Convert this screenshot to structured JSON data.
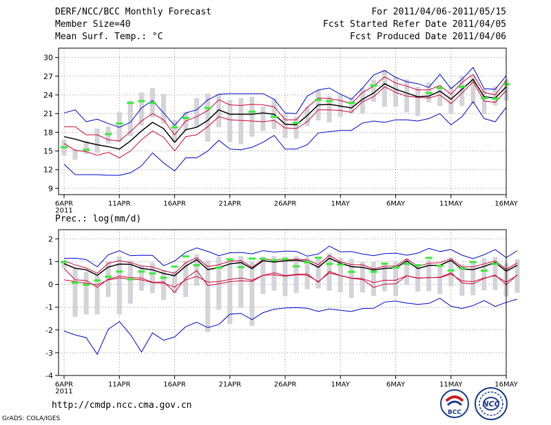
{
  "header": {
    "title": "DERF/NCC/BCC Monthly Forecast",
    "member_size": "Member Size=40",
    "variable": "Mean Surf. Temp.: °C",
    "period": "For 2011/04/06-2011/05/15",
    "started": "Fcst Started Refer Date 2011/04/05",
    "produced": "Fcst Produced Date 2011/04/06"
  },
  "footer": {
    "url": "http://cmdp.ncc.cma.gov.cn",
    "grads": "GrADS: COLA/IGES",
    "logo1_text": "BCC",
    "logo2_text": "NCC"
  },
  "colors": {
    "mean": "#000000",
    "spread": "#cc0033",
    "envelope": "#0000cc",
    "bar": "#d4d4d8",
    "obs": "#33ee33"
  },
  "chart_data": [
    {
      "type": "line",
      "title": "Mean Surf. Temp.: °C",
      "xlabel_year": "2011",
      "x_ticks": [
        {
          "day": 0,
          "label": "6APR"
        },
        {
          "day": 5,
          "label": "11APR"
        },
        {
          "day": 10,
          "label": "16APR"
        },
        {
          "day": 15,
          "label": "21APR"
        },
        {
          "day": 20,
          "label": "26APR"
        },
        {
          "day": 25,
          "label": "1MAY"
        },
        {
          "day": 30,
          "label": "6MAY"
        },
        {
          "day": 35,
          "label": "11MAY"
        },
        {
          "day": 40,
          "label": "16MAY"
        }
      ],
      "xlim": [
        -0.5,
        40
      ],
      "ylim": [
        8,
        31.5
      ],
      "y_ticks": [
        9,
        12,
        15,
        18,
        21,
        24,
        27,
        30
      ],
      "grid": true,
      "series": [
        {
          "name": "ensemble-mean",
          "values": [
            17.3,
            16.9,
            16.4,
            16.0,
            15.7,
            15.3,
            16.6,
            18.2,
            19.6,
            18.6,
            16.4,
            18.4,
            18.8,
            19.9,
            21.6,
            20.9,
            20.9,
            20.9,
            21.1,
            20.9,
            19.3,
            19.2,
            20.7,
            22.4,
            22.5,
            22.2,
            21.9,
            23.3,
            24.3,
            25.8,
            24.9,
            24.3,
            23.7,
            23.8,
            24.6,
            23.3,
            24.9,
            26.5,
            23.7,
            23.5,
            25.3
          ]
        },
        {
          "name": "upper-spread",
          "values": [
            18.9,
            18.9,
            17.6,
            17.6,
            16.8,
            16.6,
            18.1,
            19.8,
            21.0,
            20.0,
            17.6,
            19.8,
            20.5,
            21.5,
            23.2,
            22.4,
            22.3,
            22.5,
            22.4,
            22.1,
            20.0,
            20.0,
            22.0,
            23.5,
            23.4,
            23.1,
            22.6,
            24.4,
            25.4,
            26.9,
            25.9,
            25.4,
            24.8,
            24.8,
            25.5,
            24.1,
            26.0,
            27.3,
            24.4,
            24.0,
            26.3
          ]
        },
        {
          "name": "lower-spread",
          "values": [
            16.2,
            15.1,
            14.9,
            14.3,
            14.8,
            13.9,
            15.0,
            16.8,
            18.2,
            17.2,
            15.0,
            17.3,
            17.6,
            18.9,
            20.5,
            20.0,
            19.9,
            19.8,
            19.7,
            19.9,
            18.7,
            18.6,
            19.7,
            21.6,
            21.6,
            21.5,
            21.2,
            22.9,
            23.7,
            25.3,
            24.4,
            23.8,
            23.6,
            23.5,
            24.0,
            22.6,
            24.3,
            26.1,
            23.0,
            22.8,
            24.7
          ]
        },
        {
          "name": "max-envelope",
          "values": [
            21.1,
            21.6,
            19.7,
            20.1,
            19.4,
            18.8,
            19.6,
            21.9,
            23.1,
            21.1,
            19.1,
            21.1,
            21.6,
            23.2,
            24.1,
            24.2,
            24.2,
            24.2,
            24.2,
            23.3,
            21.1,
            21.0,
            23.8,
            24.8,
            25.1,
            24.1,
            23.3,
            25.1,
            27.2,
            27.9,
            26.8,
            26.1,
            25.8,
            25.2,
            27.3,
            25.0,
            26.5,
            28.4,
            25.0,
            24.9,
            27.1
          ]
        },
        {
          "name": "min-envelope",
          "values": [
            12.9,
            11.2,
            11.2,
            11.2,
            11.1,
            11.1,
            11.5,
            12.6,
            14.7,
            13.1,
            11.8,
            13.9,
            13.9,
            15.0,
            16.7,
            15.3,
            15.2,
            15.6,
            16.4,
            17.5,
            15.3,
            15.3,
            16.0,
            17.9,
            18.1,
            18.3,
            18.3,
            19.5,
            19.8,
            19.6,
            20.0,
            20.0,
            19.8,
            20.2,
            21.0,
            19.2,
            20.5,
            22.9,
            20.2,
            19.7,
            22.0
          ]
        }
      ],
      "bars": [
        [
          14.3,
          16.8
        ],
        [
          13.6,
          15.3
        ],
        [
          14.5,
          16.6
        ],
        [
          14.7,
          18.6
        ],
        [
          16.2,
          18.9
        ],
        [
          16.5,
          21.2
        ],
        [
          17.4,
          23.1
        ],
        [
          19.1,
          24.4
        ],
        [
          20.4,
          25.1
        ],
        [
          19.4,
          24.1
        ],
        [
          16.5,
          20.0
        ],
        [
          18.3,
          21.3
        ],
        [
          18.8,
          23.5
        ],
        [
          16.5,
          24.2
        ],
        [
          18.8,
          24.2
        ],
        [
          16.5,
          23.2
        ],
        [
          16.1,
          23.5
        ],
        [
          17.3,
          23.7
        ],
        [
          18.2,
          22.1
        ],
        [
          18.5,
          23.3
        ],
        [
          17.1,
          21.0
        ],
        [
          17.0,
          20.5
        ],
        [
          19.0,
          22.1
        ],
        [
          19.9,
          24.8
        ],
        [
          19.6,
          23.8
        ],
        [
          20.5,
          24.0
        ],
        [
          21.0,
          23.5
        ],
        [
          21.0,
          25.1
        ],
        [
          22.9,
          26.4
        ],
        [
          22.1,
          28.0
        ],
        [
          22.1,
          26.9
        ],
        [
          21.2,
          26.5
        ],
        [
          20.6,
          25.3
        ],
        [
          22.8,
          26.0
        ],
        [
          22.2,
          25.5
        ],
        [
          21.0,
          25.4
        ],
        [
          22.2,
          27.1
        ],
        [
          22.6,
          27.1
        ],
        [
          20.9,
          24.9
        ],
        [
          22.3,
          25.4
        ],
        [
          23.1,
          26.5
        ]
      ],
      "observed": [
        15.6,
        null,
        15.2,
        null,
        17.7,
        19.4,
        22.7,
        23.0,
        22.7,
        null,
        18.8,
        20.3,
        null,
        21.9,
        null,
        null,
        null,
        21.3,
        null,
        20.5,
        null,
        19.5,
        null,
        23.2,
        23.0,
        null,
        22.7,
        null,
        25.5,
        null,
        null,
        null,
        null,
        24.3,
        25.1,
        null,
        25.3,
        null,
        23.5,
        23.4,
        25.7
      ]
    },
    {
      "type": "line",
      "title": "Prec.: log(mm/d)",
      "xlabel_year": "2011",
      "x_ticks": [
        {
          "day": 0,
          "label": "6APR"
        },
        {
          "day": 5,
          "label": "11APR"
        },
        {
          "day": 10,
          "label": "16APR"
        },
        {
          "day": 15,
          "label": "21APR"
        },
        {
          "day": 20,
          "label": "26APR"
        },
        {
          "day": 25,
          "label": "1MAY"
        },
        {
          "day": 30,
          "label": "6MAY"
        },
        {
          "day": 35,
          "label": "11MAY"
        },
        {
          "day": 40,
          "label": "16MAY"
        }
      ],
      "xlim": [
        -0.5,
        40
      ],
      "ylim": [
        -4,
        2.4
      ],
      "y_ticks": [
        -4,
        -3,
        -2,
        -1,
        0,
        1,
        2
      ],
      "grid": true,
      "series": [
        {
          "name": "ensemble-mean",
          "values": [
            0.91,
            0.71,
            0.64,
            0.4,
            0.76,
            0.89,
            0.88,
            0.7,
            0.64,
            0.48,
            0.38,
            0.8,
            1.08,
            0.65,
            0.73,
            0.9,
            0.96,
            0.69,
            1.04,
            0.98,
            1.03,
            1.06,
            1.0,
            0.75,
            1.15,
            0.93,
            0.78,
            0.75,
            0.63,
            0.7,
            0.72,
            1.03,
            0.69,
            0.83,
            0.84,
            1.05,
            0.67,
            0.65,
            0.79,
            0.96,
            0.58,
            0.84
          ]
        },
        {
          "name": "upper-spread",
          "values": [
            1.04,
            0.85,
            0.72,
            0.49,
            0.92,
            1.04,
            0.96,
            0.81,
            0.76,
            0.6,
            0.49,
            0.95,
            1.17,
            0.78,
            0.86,
            1.02,
            1.05,
            0.75,
            1.09,
            1.08,
            1.08,
            1.11,
            1.08,
            0.86,
            1.27,
            0.99,
            0.87,
            0.86,
            0.68,
            0.8,
            0.8,
            1.12,
            0.79,
            0.93,
            0.95,
            1.12,
            0.77,
            0.77,
            0.9,
            1.03,
            0.66,
            0.94
          ]
        },
        {
          "name": "lower-spread",
          "values": [
            0.7,
            0.2,
            0.17,
            -0.13,
            0.23,
            0.36,
            0.3,
            0.28,
            0.09,
            0.11,
            -0.35,
            0.27,
            0.6,
            -0.05,
            0.02,
            0.12,
            0.16,
            0.13,
            0.4,
            0.51,
            0.38,
            0.44,
            0.46,
            0.09,
            0.57,
            0.38,
            0.27,
            0.21,
            -0.13,
            0.01,
            0.02,
            0.38,
            0.27,
            0.3,
            0.31,
            0.51,
            0.06,
            0.02,
            0.26,
            0.41,
            -0.02,
            0.42
          ]
        },
        {
          "name": "max-envelope",
          "values": [
            1.14,
            1.15,
            1.09,
            0.77,
            1.3,
            1.48,
            1.26,
            1.28,
            1.27,
            0.82,
            1.02,
            1.41,
            1.6,
            1.45,
            1.26,
            1.39,
            1.4,
            1.34,
            1.48,
            1.42,
            1.46,
            1.45,
            1.24,
            1.33,
            1.68,
            1.43,
            1.44,
            1.33,
            1.26,
            1.35,
            1.37,
            1.28,
            1.37,
            1.58,
            1.44,
            1.53,
            1.28,
            1.13,
            1.3,
            1.53,
            1.17,
            1.48
          ]
        },
        {
          "name": "min-envelope",
          "values": [
            -2.05,
            -2.22,
            -2.34,
            -3.07,
            -1.97,
            -1.63,
            -2.2,
            -2.97,
            -2.13,
            -2.45,
            -2.31,
            -1.86,
            -1.66,
            -1.9,
            -1.76,
            -1.31,
            -1.27,
            -1.55,
            -1.24,
            -1.09,
            -1.04,
            -1.02,
            -1.05,
            -1.19,
            -1.08,
            -1.14,
            -1.19,
            -1.06,
            -1.05,
            -0.78,
            -0.73,
            -0.82,
            -0.88,
            -0.84,
            -0.61,
            -0.96,
            -1.06,
            -0.93,
            -0.71,
            -0.97,
            -0.79,
            -0.65
          ]
        },
        {
          "name": "reference-zero",
          "values": [
            0.2,
            0.12,
            0.05,
            -0.02,
            0.2,
            0.28,
            0.23,
            0.2,
            0.08,
            0.05,
            -0.12,
            0.2,
            0.35,
            0.1,
            0.12,
            0.22,
            0.28,
            0.18,
            0.4,
            0.42,
            0.36,
            0.42,
            0.4,
            0.12,
            0.5,
            0.38,
            0.28,
            0.25,
            0.08,
            0.18,
            0.18,
            0.38,
            0.28,
            0.3,
            0.3,
            0.45,
            0.15,
            0.12,
            0.28,
            0.38,
            0.1,
            0.4
          ]
        }
      ],
      "bars": [
        [
          0.72,
          1.04
        ],
        [
          -1.42,
          0.7
        ],
        [
          -1.32,
          0.55
        ],
        [
          -1.32,
          0.42
        ],
        [
          -0.55,
          1.02
        ],
        [
          -1.32,
          1.23
        ],
        [
          -0.85,
          1.05
        ],
        [
          -0.28,
          0.8
        ],
        [
          -0.38,
          0.96
        ],
        [
          -0.68,
          0.62
        ],
        [
          -0.42,
          0.55
        ],
        [
          -0.56,
          1.03
        ],
        [
          -0.06,
          1.32
        ],
        [
          -2.1,
          1.05
        ],
        [
          -1.12,
          1.22
        ],
        [
          -1.75,
          1.13
        ],
        [
          -1.02,
          1.24
        ],
        [
          -1.82,
          1.0
        ],
        [
          -0.42,
          1.22
        ],
        [
          -0.27,
          1.24
        ],
        [
          -0.52,
          1.22
        ],
        [
          -0.38,
          1.24
        ],
        [
          -0.22,
          1.2
        ],
        [
          -0.18,
          1.16
        ],
        [
          -0.28,
          1.36
        ],
        [
          -0.34,
          1.15
        ],
        [
          -0.6,
          1.12
        ],
        [
          -0.36,
          0.98
        ],
        [
          -0.51,
          0.99
        ],
        [
          -0.3,
          0.87
        ],
        [
          -0.52,
          0.99
        ],
        [
          -0.03,
          1.12
        ],
        [
          -0.32,
          0.89
        ],
        [
          -0.3,
          1.07
        ],
        [
          -0.42,
          0.87
        ],
        [
          -0.08,
          1.2
        ],
        [
          -0.5,
          0.9
        ],
        [
          -0.48,
          0.97
        ],
        [
          -0.26,
          1.15
        ],
        [
          -0.25,
          1.2
        ],
        [
          -0.52,
          0.92
        ],
        [
          -0.37,
          1.1
        ]
      ],
      "observed": [
        0.98,
        0.07,
        -0.02,
        0.17,
        0.34,
        0.56,
        0.22,
        0.56,
        0.48,
        0.29,
        0.78,
        1.23,
        0.84,
        null,
        0.73,
        1.1,
        0.76,
        1.13,
        1.12,
        1.06,
        1.11,
        0.79,
        0.97,
        1.17,
        0.9,
        0.87,
        0.55,
        null,
        0.55,
        0.91,
        0.74,
        0.9,
        0.84,
        1.16,
        0.82,
        0.61,
        0.7,
        0.98,
        0.6,
        0.9,
        null,
        null
      ]
    }
  ]
}
